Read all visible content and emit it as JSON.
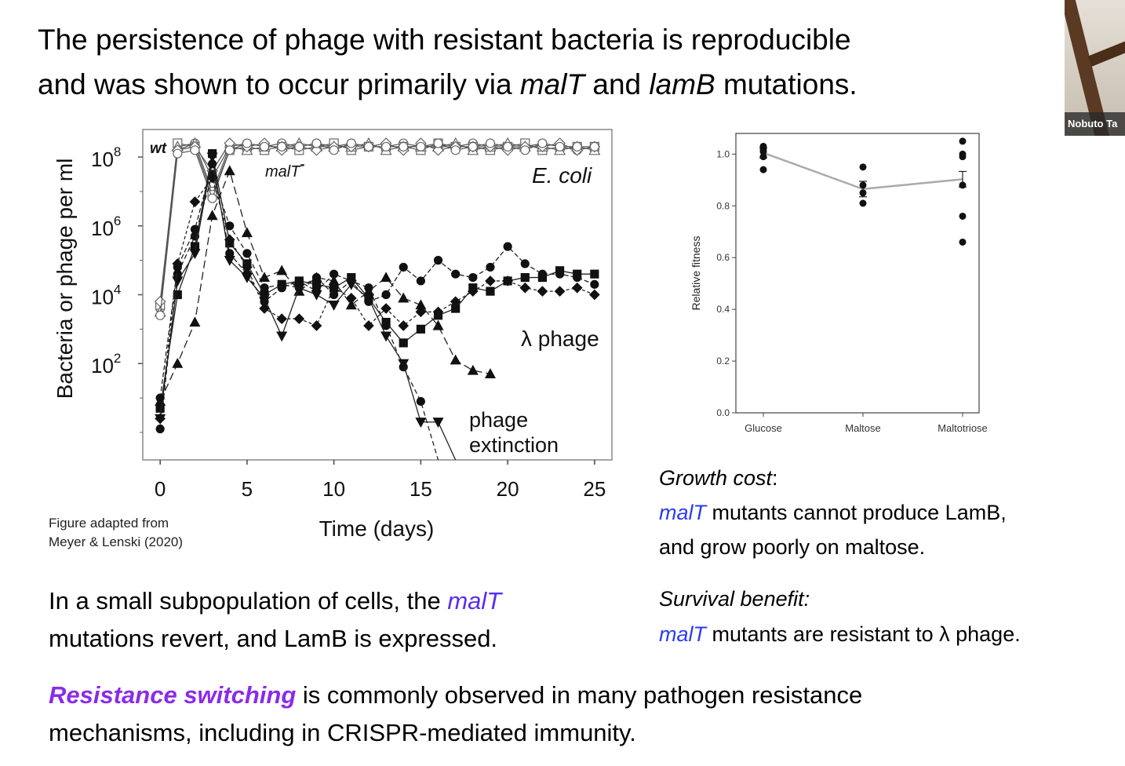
{
  "title": {
    "line1": "The persistence of phage with resistant bacteria is reproducible",
    "line2_pre": "and was shown to occur primarily via ",
    "malT": "malT",
    "and": " and ",
    "lamB": "lamB",
    "line2_post": " mutations."
  },
  "webcam": {
    "name": "Nobuto Ta"
  },
  "chart_data": [
    {
      "type": "line",
      "xlabel": "Time (days)",
      "ylabel": "Bacteria or phage per ml",
      "x_ticks": [
        "0",
        "5",
        "10",
        "15",
        "20",
        "25"
      ],
      "y_ticks": [
        "10",
        "10",
        "10",
        "10"
      ],
      "y_tick_exps": [
        "8",
        "6",
        "4",
        "2"
      ],
      "xlim": [
        -1,
        26
      ],
      "ylim_log10": [
        -0.8,
        8.8
      ],
      "annotations": {
        "wt": "wt",
        "malT": "malT",
        "malT_sup": "-",
        "ecoli": "E. coli",
        "lambda": "λ phage",
        "extinction_1": "phage",
        "extinction_2": "extinction"
      },
      "ecoli_series": [
        {
          "x": [
            0,
            1,
            2,
            3,
            4,
            5,
            6,
            7,
            8,
            9,
            10,
            11,
            12,
            13,
            14,
            15,
            16,
            17,
            18,
            19,
            20,
            21,
            22,
            23,
            24,
            25
          ],
          "y": [
            3.6,
            8.2,
            8.4,
            7.0,
            8.3,
            8.4,
            8.3,
            8.4,
            8.3,
            8.4,
            8.3,
            8.4,
            8.3,
            8.3,
            8.4,
            8.3,
            8.3,
            8.3,
            8.4,
            8.3,
            8.3,
            8.3,
            8.4,
            8.3,
            8.2,
            8.3
          ]
        },
        {
          "x": [
            0,
            1,
            2,
            3,
            4,
            5,
            6,
            7,
            8,
            9,
            10,
            11,
            12,
            13,
            14,
            15,
            16,
            17,
            18,
            19,
            20,
            21,
            22,
            23,
            24,
            25
          ],
          "y": [
            3.7,
            8.4,
            8.3,
            6.9,
            8.2,
            8.3,
            8.2,
            8.3,
            8.2,
            8.3,
            8.4,
            8.2,
            8.3,
            8.3,
            8.3,
            8.2,
            8.4,
            8.3,
            8.3,
            8.2,
            8.3,
            8.4,
            8.2,
            8.3,
            8.3,
            8.3
          ]
        },
        {
          "x": [
            0,
            1,
            2,
            3,
            4,
            5,
            6,
            7,
            8,
            9,
            10,
            11,
            12,
            13,
            14,
            15,
            16,
            17,
            18,
            19,
            20,
            21,
            22,
            23,
            24,
            25
          ],
          "y": [
            3.5,
            8.3,
            8.4,
            7.4,
            8.3,
            8.2,
            8.3,
            8.3,
            8.4,
            8.3,
            8.3,
            8.3,
            8.4,
            8.2,
            8.3,
            8.3,
            8.3,
            8.4,
            8.2,
            8.3,
            8.4,
            8.3,
            8.3,
            8.2,
            8.3,
            8.2
          ]
        },
        {
          "x": [
            0,
            1,
            2,
            3,
            4,
            5,
            6,
            7,
            8,
            9,
            10,
            11,
            12,
            13,
            14,
            15,
            16,
            17,
            18,
            19,
            20,
            21,
            22,
            23,
            24,
            25
          ],
          "y": [
            3.8,
            8.2,
            8.3,
            7.6,
            8.4,
            8.3,
            8.4,
            8.2,
            8.3,
            8.2,
            8.3,
            8.3,
            8.3,
            8.4,
            8.2,
            8.4,
            8.2,
            8.3,
            8.3,
            8.3,
            8.2,
            8.3,
            8.3,
            8.4,
            8.2,
            8.3
          ]
        },
        {
          "x": [
            0,
            1,
            2,
            3,
            4,
            5,
            6,
            7,
            8,
            9,
            10,
            11,
            12,
            13,
            14,
            15,
            16,
            17,
            18,
            19,
            20,
            21,
            22,
            23,
            24,
            25
          ],
          "y": [
            3.4,
            8.1,
            8.2,
            6.8,
            8.2,
            8.4,
            8.3,
            8.3,
            8.3,
            8.4,
            8.2,
            8.4,
            8.3,
            8.3,
            8.3,
            8.3,
            8.4,
            8.2,
            8.3,
            8.4,
            8.3,
            8.2,
            8.4,
            8.3,
            8.3,
            8.3
          ]
        }
      ],
      "phage_series": [
        {
          "marker": "circle",
          "dash": "6,4",
          "x": [
            0,
            1,
            2,
            3,
            4,
            5,
            6,
            7,
            8,
            9,
            10,
            11,
            12,
            13,
            14,
            15,
            16
          ],
          "y": [
            0.1,
            4.6,
            5.7,
            7.5,
            6.0,
            5.2,
            4.2,
            4.3,
            4.2,
            4.5,
            4.0,
            4.4,
            4.2,
            3.1,
            1.9,
            0.9,
            -1.0
          ]
        },
        {
          "marker": "square",
          "dash": "",
          "x": [
            0,
            1,
            2,
            3,
            4,
            5,
            6,
            7,
            8,
            9,
            10,
            11,
            12,
            13,
            14,
            15,
            16,
            17,
            18,
            19,
            20,
            21,
            22,
            23,
            24,
            25
          ],
          "y": [
            0.7,
            4.0,
            5.4,
            8.1,
            5.5,
            4.9,
            4.0,
            4.3,
            4.4,
            4.3,
            4.2,
            4.5,
            3.9,
            3.2,
            2.6,
            3.0,
            3.4,
            3.6,
            4.2,
            4.1,
            4.4,
            4.5,
            4.5,
            4.7,
            4.6,
            4.6
          ]
        },
        {
          "marker": "triangle-up",
          "dash": "10,5",
          "x": [
            0,
            1,
            2,
            3,
            4,
            5,
            6,
            7,
            8,
            9,
            10,
            11,
            12,
            13,
            14,
            15,
            16,
            17,
            18,
            19
          ],
          "y": [
            0.9,
            2.0,
            3.2,
            6.3,
            7.6,
            5.8,
            4.5,
            4.7,
            4.1,
            4.5,
            4.4,
            3.7,
            4.1,
            4.5,
            3.9,
            3.7,
            3.1,
            2.1,
            1.8,
            1.7
          ]
        },
        {
          "marker": "triangle-down",
          "dash": "",
          "x": [
            0,
            1,
            2,
            3,
            4,
            5,
            6,
            7,
            8,
            9,
            10,
            11,
            12,
            13,
            14,
            15,
            16,
            17
          ],
          "y": [
            0.4,
            4.4,
            5.2,
            8.0,
            5.0,
            4.5,
            3.9,
            2.8,
            4.2,
            4.0,
            3.7,
            4.3,
            3.9,
            2.8,
            2.0,
            0.3,
            0.3,
            -1.0
          ]
        },
        {
          "marker": "diamond",
          "dash": "4,3",
          "x": [
            0,
            1,
            2,
            3,
            4,
            5,
            6,
            7,
            8,
            9,
            10,
            11,
            12,
            13,
            14,
            15,
            16,
            17,
            18,
            19,
            20,
            21,
            22,
            23,
            24,
            25
          ],
          "y": [
            0.4,
            4.9,
            6.7,
            7.4,
            5.6,
            4.8,
            3.6,
            3.3,
            3.3,
            3.1,
            4.2,
            3.9,
            3.1,
            3.6,
            3.1,
            3.5,
            3.5,
            3.8,
            4.1,
            4.4,
            4.4,
            4.2,
            4.1,
            4.1,
            4.2,
            4.0
          ]
        },
        {
          "marker": "hexagon",
          "dash": "6,3",
          "x": [
            0,
            1,
            2,
            3,
            4,
            5,
            6,
            7,
            8,
            9,
            10,
            11,
            12,
            13,
            14,
            15,
            16,
            17,
            18,
            19,
            20,
            21,
            22,
            23,
            24,
            25
          ],
          "y": [
            1.0,
            4.8,
            5.9,
            7.8,
            5.2,
            4.6,
            3.8,
            4.2,
            4.4,
            4.1,
            4.6,
            4.4,
            3.8,
            4.0,
            4.8,
            4.4,
            5.0,
            4.6,
            4.5,
            4.8,
            5.4,
            4.9,
            4.6,
            4.6,
            4.5,
            4.3
          ]
        }
      ]
    },
    {
      "type": "scatter",
      "ylabel": "Relative fitness",
      "categories": [
        "Glucose",
        "Maltose",
        "Maltotriose"
      ],
      "y_ticks": [
        "0.0",
        "0.2",
        "0.4",
        "0.6",
        "0.8",
        "1.0"
      ],
      "ylim": [
        0,
        1.08
      ],
      "points": [
        [
          1.03,
          1.02,
          1.01,
          0.99,
          0.94
        ],
        [
          0.95,
          0.88,
          0.85,
          0.81
        ],
        [
          1.05,
          1.0,
          0.99,
          0.88,
          0.76,
          0.66
        ]
      ],
      "means": [
        1.005,
        0.865,
        0.903
      ],
      "errors": [
        0.02,
        0.03,
        0.03
      ]
    }
  ],
  "caption": {
    "line1": "Figure adapted from",
    "line2": "Meyer & Lenski (2020)"
  },
  "growth_cost": {
    "heading": "Growth cost",
    "colon": ":",
    "malT": "malT",
    "line1_rest": " mutants cannot produce LamB,",
    "line2": "and grow poorly on maltose."
  },
  "survival_benefit": {
    "heading": "Survival benefit:",
    "malT": "malT",
    "rest": " mutants are resistant to λ phage."
  },
  "bottom_left": {
    "line1_pre": "In a small subpopulation of cells, the ",
    "malT": "malT",
    "line2": "mutations revert, and LamB is expressed."
  },
  "bottom": {
    "highlight": "Resistance switching",
    "line1_rest": " is commonly observed in many pathogen resistance",
    "line2": "mechanisms, including in CRISPR-mediated immunity."
  },
  "colors": {
    "purple_text": "#5b2cf0",
    "magenta_text": "#8b2be8",
    "blue_text": "#2b3cf0",
    "fitness_line": "#aaaaaa"
  }
}
